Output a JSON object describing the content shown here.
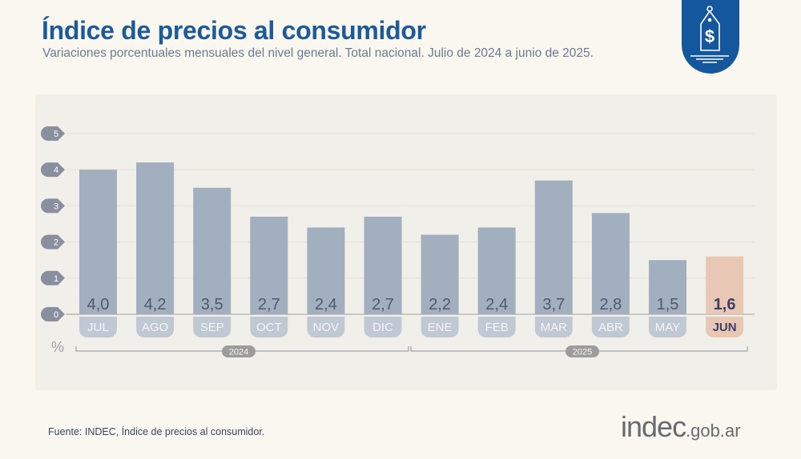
{
  "header": {
    "title": "Índice de precios al consumidor",
    "subtitle": "Variaciones porcentuales mensuales del nivel general. Total nacional. Julio de 2024 a junio de 2025."
  },
  "badge": {
    "icon": "price-tag-dollar-icon",
    "color": "#14579c"
  },
  "footer": {
    "source": "Fuente: INDEC, Índice de precios al consumidor.",
    "logo_main": "indec",
    "logo_domain": ".gob.ar"
  },
  "chart_data": {
    "type": "bar",
    "title": "Índice de precios al consumidor",
    "ylabel": "%",
    "ylim": [
      0,
      5
    ],
    "yticks": [
      "0",
      "1",
      "2",
      "3",
      "4",
      "5"
    ],
    "grid": true,
    "categories": [
      "JUL",
      "AGO",
      "SEP",
      "OCT",
      "NOV",
      "DIC",
      "ENE",
      "FEB",
      "MAR",
      "ABR",
      "MAY",
      "JUN"
    ],
    "values": [
      4.0,
      4.2,
      3.5,
      2.7,
      2.4,
      2.7,
      2.2,
      2.4,
      3.7,
      2.8,
      1.5,
      1.6
    ],
    "value_labels": [
      "4,0",
      "4,2",
      "3,5",
      "2,7",
      "2,4",
      "2,7",
      "2,2",
      "2,4",
      "3,7",
      "2,8",
      "1,5",
      "1,6"
    ],
    "year_groups": [
      {
        "label": "2024",
        "months": [
          "JUL",
          "AGO",
          "SEP",
          "OCT",
          "NOV",
          "DIC"
        ]
      },
      {
        "label": "2025",
        "months": [
          "ENE",
          "FEB",
          "MAR",
          "ABR",
          "MAY",
          "JUN"
        ]
      }
    ],
    "highlight": "JUN",
    "colors": {
      "bar": "#a2afbf",
      "highlight_bar": "#e8c8b4",
      "label_pill": "#c0c8d3",
      "highlight_pill": "#e8c8b4",
      "tick_badge": "#8a8fa0"
    }
  }
}
